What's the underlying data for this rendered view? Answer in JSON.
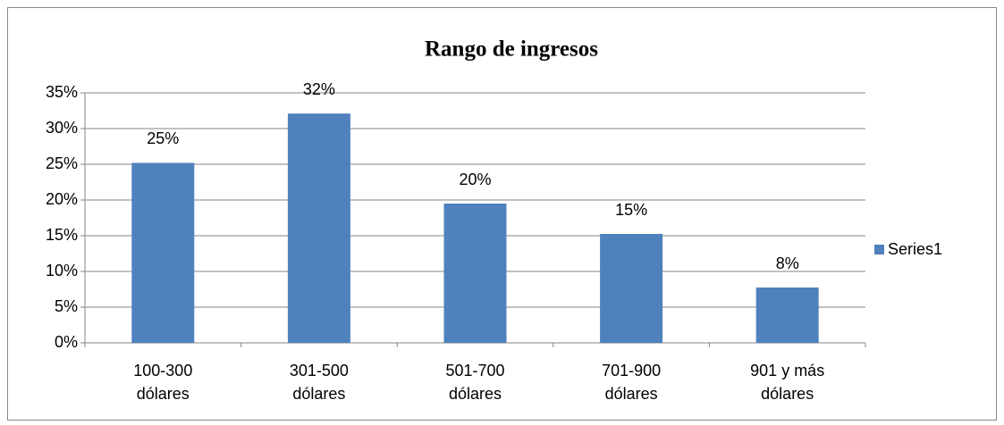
{
  "chart_data": {
    "type": "bar",
    "title": "Rango de ingresos",
    "categories": [
      "100-300 dólares",
      "301-500 dólares",
      "501-700 dólares",
      "701-900 dólares",
      "901 y más dólares"
    ],
    "series": [
      {
        "name": "Series1",
        "color": "#4f81bd",
        "values": [
          25.2,
          32.1,
          19.5,
          15.25,
          7.75
        ],
        "value_labels": [
          "25%",
          "32%",
          "20%",
          "15%",
          "8%"
        ]
      }
    ],
    "ylim": [
      0,
      35
    ],
    "yticks": [
      {
        "value": 0,
        "label": "0%"
      },
      {
        "value": 5,
        "label": "5%"
      },
      {
        "value": 10,
        "label": "10%"
      },
      {
        "value": 15,
        "label": "15%"
      },
      {
        "value": 20,
        "label": "20%"
      },
      {
        "value": 25,
        "label": "25%"
      },
      {
        "value": 30,
        "label": "30%"
      },
      {
        "value": 35,
        "label": "35%"
      }
    ],
    "grid": true,
    "legend": "right"
  }
}
